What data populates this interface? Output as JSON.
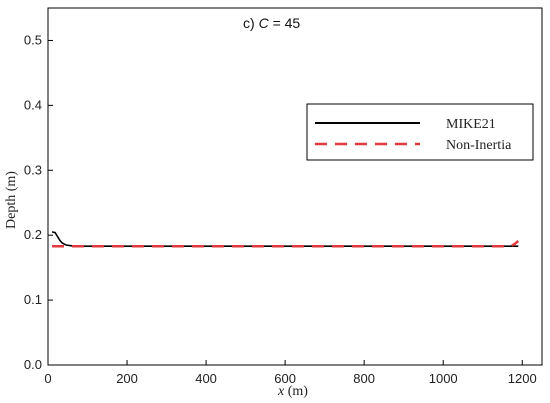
{
  "chart_data": {
    "type": "line",
    "title_prefix": "c) ",
    "title_var": "C",
    "title_suffix": " = 45",
    "xlabel_var": "x",
    "xlabel_unit": " (m)",
    "ylabel": "Depth (m)",
    "xlim": [
      0,
      1250
    ],
    "ylim": [
      0.0,
      0.55
    ],
    "xticks": [
      0,
      200,
      400,
      600,
      800,
      1000,
      1200
    ],
    "yticks": [
      0.0,
      0.1,
      0.2,
      0.3,
      0.4,
      0.5
    ],
    "ytick_labels": [
      "0.0",
      "0.1",
      "0.2",
      "0.3",
      "0.4",
      "0.5"
    ],
    "legend_position": "upper-right",
    "series": [
      {
        "name": "MIKE21",
        "color": "#000000",
        "style": "solid",
        "x": [
          10,
          18,
          24,
          30,
          36,
          45,
          55,
          70,
          100,
          200,
          400,
          600,
          800,
          1000,
          1190
        ],
        "y": [
          0.205,
          0.204,
          0.198,
          0.192,
          0.188,
          0.185,
          0.184,
          0.183,
          0.183,
          0.183,
          0.183,
          0.183,
          0.183,
          0.183,
          0.183
        ]
      },
      {
        "name": "Non-Inertia",
        "color": "#e03a3e",
        "style": "dashed",
        "x": [
          10,
          100,
          200,
          400,
          600,
          800,
          1000,
          1170,
          1180,
          1190
        ],
        "y": [
          0.183,
          0.183,
          0.183,
          0.183,
          0.183,
          0.183,
          0.183,
          0.183,
          0.186,
          0.191
        ]
      }
    ]
  }
}
